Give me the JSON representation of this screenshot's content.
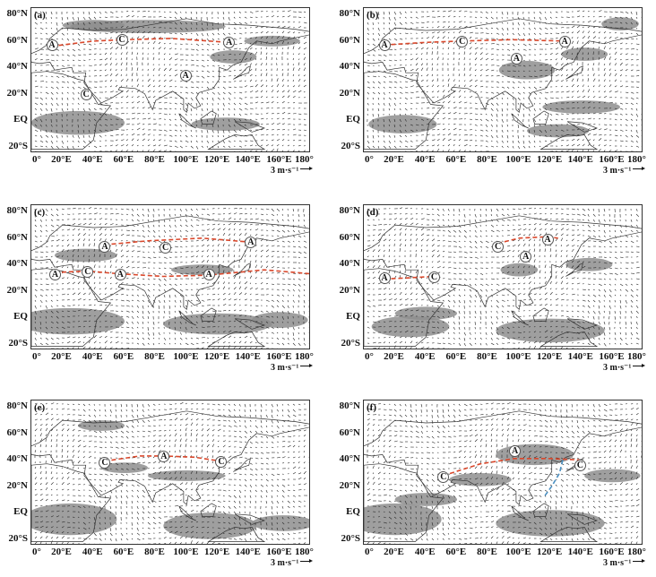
{
  "y_labels": [
    "80°N",
    "60°N",
    "40°N",
    "20°N",
    "EQ",
    "20°S"
  ],
  "x_labels": [
    "0°",
    "20°E",
    "40°E",
    "60°E",
    "80°E",
    "100°E",
    "120°E",
    "140°E",
    "160°E",
    "180°"
  ],
  "ref_vector": "3 m·s⁻¹",
  "colors": {
    "shading": "#8e8e8e",
    "trough_ridge_line": "#d9472b",
    "jet_line": "#4a90c2",
    "vectors": "#222222",
    "coast": "#333333"
  },
  "panels": [
    {
      "label": "(a)",
      "systems": [
        {
          "t": "A",
          "lon": 13,
          "lat": 57
        },
        {
          "t": "C",
          "lon": 58,
          "lat": 61
        },
        {
          "t": "A",
          "lon": 127,
          "lat": 59
        },
        {
          "t": "A",
          "lon": 99,
          "lat": 34
        },
        {
          "t": "C",
          "lon": 35,
          "lat": 20
        }
      ],
      "lines": [
        {
          "color": "red",
          "pts": [
            [
              13,
              56
            ],
            [
              40,
              60
            ],
            [
              60,
              61
            ],
            [
              90,
              62
            ],
            [
              127,
              59
            ]
          ]
        }
      ]
    },
    {
      "label": "(b)",
      "systems": [
        {
          "t": "A",
          "lon": 13,
          "lat": 57
        },
        {
          "t": "C",
          "lon": 63,
          "lat": 60
        },
        {
          "t": "A",
          "lon": 129,
          "lat": 60
        },
        {
          "t": "A",
          "lon": 98,
          "lat": 47
        }
      ],
      "lines": [
        {
          "color": "red",
          "pts": [
            [
              13,
              57
            ],
            [
              40,
              59
            ],
            [
              63,
              60
            ],
            [
              95,
              61
            ],
            [
              129,
              60
            ]
          ]
        }
      ]
    },
    {
      "label": "(c)",
      "systems": [
        {
          "t": "A",
          "lon": 47,
          "lat": 54
        },
        {
          "t": "C",
          "lon": 86,
          "lat": 53
        },
        {
          "t": "A",
          "lon": 141,
          "lat": 57
        },
        {
          "t": "A",
          "lon": 15,
          "lat": 33
        },
        {
          "t": "C",
          "lon": 36,
          "lat": 35
        },
        {
          "t": "A",
          "lon": 57,
          "lat": 33
        },
        {
          "t": "A",
          "lon": 114,
          "lat": 33
        }
      ],
      "lines": [
        {
          "color": "red",
          "pts": [
            [
              47,
              55
            ],
            [
              75,
              58
            ],
            [
              110,
              60
            ],
            [
              141,
              57
            ]
          ]
        },
        {
          "color": "red",
          "pts": [
            [
              15,
              34
            ],
            [
              36,
              35
            ],
            [
              57,
              33
            ],
            [
              85,
              31
            ],
            [
              114,
              32
            ],
            [
              150,
              36
            ],
            [
              180,
              33
            ]
          ]
        }
      ]
    },
    {
      "label": "(d)",
      "systems": [
        {
          "t": "C",
          "lon": 86,
          "lat": 54
        },
        {
          "t": "A",
          "lon": 118,
          "lat": 59
        },
        {
          "t": "A",
          "lon": 104,
          "lat": 46
        },
        {
          "t": "A",
          "lon": 13,
          "lat": 30
        },
        {
          "t": "C",
          "lon": 45,
          "lat": 31
        }
      ],
      "lines": [
        {
          "color": "red",
          "pts": [
            [
              86,
              56
            ],
            [
              100,
              60
            ],
            [
              118,
              61
            ],
            [
              125,
              60
            ]
          ]
        },
        {
          "color": "red",
          "pts": [
            [
              13,
              29
            ],
            [
              30,
              30
            ],
            [
              45,
              31
            ]
          ]
        }
      ]
    },
    {
      "label": "(e)",
      "systems": [
        {
          "t": "C",
          "lon": 47,
          "lat": 38
        },
        {
          "t": "A",
          "lon": 85,
          "lat": 43
        },
        {
          "t": "C",
          "lon": 122,
          "lat": 39
        }
      ],
      "lines": [
        {
          "color": "red",
          "pts": [
            [
              47,
              39
            ],
            [
              70,
              43
            ],
            [
              85,
              43
            ],
            [
              105,
              42
            ],
            [
              122,
              39
            ]
          ]
        }
      ]
    },
    {
      "label": "(f)",
      "systems": [
        {
          "t": "C",
          "lon": 51,
          "lat": 27
        },
        {
          "t": "A",
          "lon": 97,
          "lat": 47
        },
        {
          "t": "C",
          "lon": 139,
          "lat": 36
        }
      ],
      "lines": [
        {
          "color": "red",
          "pts": [
            [
              51,
              28
            ],
            [
              75,
              37
            ],
            [
              97,
              41
            ],
            [
              120,
              41
            ],
            [
              139,
              40
            ]
          ]
        },
        {
          "color": "blue",
          "pts": [
            [
              128,
              40
            ],
            [
              126,
              30
            ],
            [
              121,
              20
            ],
            [
              116,
              12
            ]
          ]
        }
      ]
    }
  ]
}
